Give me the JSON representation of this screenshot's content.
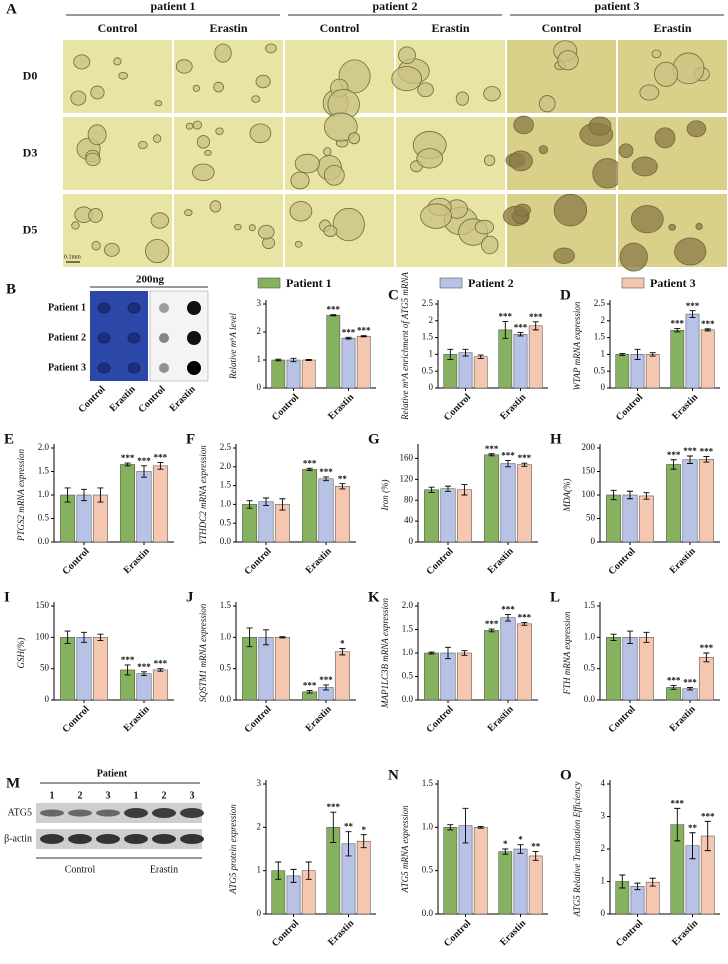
{
  "panel_a": {
    "letter": "A",
    "patients": [
      "patient 1",
      "patient 2",
      "patient 3"
    ],
    "conditions": [
      "Control",
      "Erastin"
    ],
    "days": [
      "D0",
      "D3",
      "D5"
    ],
    "scale_bar": "0.1mm"
  },
  "panel_b": {
    "letter": "B",
    "amount": "200ng",
    "rows": [
      "Patient 1",
      "Patient 2",
      "Patient 3"
    ],
    "columns": [
      "Control",
      "Erastin",
      "Control",
      "Erastin"
    ]
  },
  "panel_m": {
    "letter": "M",
    "title": "Patient",
    "lanes": [
      "1",
      "2",
      "3",
      "1",
      "2",
      "3"
    ],
    "proteins": [
      "ATG5",
      "β-actin"
    ],
    "groups": [
      "Control",
      "Erastin"
    ]
  },
  "legend": [
    {
      "name": "Patient 1",
      "color": "#86b25f"
    },
    {
      "name": "Patient 2",
      "color": "#b7c2e6"
    },
    {
      "name": "Patient 3",
      "color": "#f5c7b0"
    }
  ],
  "chart_data": [
    {
      "type": "bar",
      "ylabel": "Relative m⁶A level",
      "categories": [
        "Control",
        "Erastin"
      ],
      "ylim": [
        0,
        3
      ],
      "yticks": [
        0,
        1,
        2,
        3
      ],
      "series": [
        {
          "values": [
            1.0,
            2.6
          ],
          "errors": [
            0.03,
            0.02
          ],
          "annotations": [
            null,
            "***"
          ]
        },
        {
          "values": [
            1.0,
            1.78
          ],
          "errors": [
            0.06,
            0.03
          ],
          "annotations": [
            null,
            "***"
          ]
        },
        {
          "values": [
            1.0,
            1.85
          ],
          "errors": [
            0.02,
            0.02
          ],
          "annotations": [
            null,
            "***"
          ]
        }
      ]
    },
    {
      "type": "bar",
      "letter": "C",
      "ylabel": "Relative m⁶A enrichment of ATG5 mRNA",
      "categories": [
        "Control",
        "Erastin"
      ],
      "ylim": [
        0,
        2.5
      ],
      "yticks": [
        0,
        0.5,
        1,
        1.5,
        2,
        2.5
      ],
      "series": [
        {
          "values": [
            1.0,
            1.73
          ],
          "errors": [
            0.15,
            0.25
          ],
          "annotations": [
            null,
            "***"
          ]
        },
        {
          "values": [
            1.05,
            1.6
          ],
          "errors": [
            0.1,
            0.05
          ],
          "annotations": [
            null,
            "***"
          ]
        },
        {
          "values": [
            0.93,
            1.85
          ],
          "errors": [
            0.05,
            0.12
          ],
          "annotations": [
            null,
            "***"
          ]
        }
      ]
    },
    {
      "type": "bar",
      "letter": "D",
      "ylabel": "WTAP mRNA expression",
      "categories": [
        "Control",
        "Erastin"
      ],
      "ylim": [
        0,
        2.5
      ],
      "yticks": [
        0,
        0.5,
        1,
        1.5,
        2,
        2.5
      ],
      "series": [
        {
          "values": [
            1.0,
            1.72
          ],
          "errors": [
            0.03,
            0.05
          ],
          "annotations": [
            null,
            "***"
          ]
        },
        {
          "values": [
            1.0,
            2.2
          ],
          "errors": [
            0.15,
            0.1
          ],
          "annotations": [
            null,
            "***"
          ]
        },
        {
          "values": [
            1.0,
            1.73
          ],
          "errors": [
            0.05,
            0.03
          ],
          "annotations": [
            null,
            "***"
          ]
        }
      ]
    },
    {
      "type": "bar",
      "letter": "E",
      "ylabel": "PTGS2 mRNA expression",
      "categories": [
        "Control",
        "Erastin"
      ],
      "ylim": [
        0,
        2
      ],
      "yticks": [
        {
          "value": 0,
          "label": "0.0"
        },
        0.5,
        {
          "value": 1,
          "label": "1.0"
        },
        1.5,
        {
          "value": 2,
          "label": "2.0"
        }
      ],
      "series": [
        {
          "values": [
            1.0,
            1.65
          ],
          "errors": [
            0.15,
            0.03
          ],
          "annotations": [
            null,
            "***"
          ]
        },
        {
          "values": [
            1.0,
            1.5
          ],
          "errors": [
            0.12,
            0.12
          ],
          "annotations": [
            null,
            "***"
          ]
        },
        {
          "values": [
            1.0,
            1.62
          ],
          "errors": [
            0.15,
            0.07
          ],
          "annotations": [
            null,
            "***"
          ]
        }
      ]
    },
    {
      "type": "bar",
      "letter": "F",
      "ylabel": "YTHDC2 mRNA expression",
      "categories": [
        "Control",
        "Erastin"
      ],
      "ylim": [
        0,
        2.5
      ],
      "yticks": [
        {
          "value": 0,
          "label": "0.0"
        },
        0.5,
        {
          "value": 1,
          "label": "1.0"
        },
        1.5,
        {
          "value": 2,
          "label": "2.0"
        },
        2.5
      ],
      "series": [
        {
          "values": [
            1.0,
            1.93
          ],
          "errors": [
            0.1,
            0.03
          ],
          "annotations": [
            null,
            "***"
          ]
        },
        {
          "values": [
            1.07,
            1.68
          ],
          "errors": [
            0.1,
            0.05
          ],
          "annotations": [
            null,
            "***"
          ]
        },
        {
          "values": [
            1.0,
            1.48
          ],
          "errors": [
            0.15,
            0.07
          ],
          "annotations": [
            null,
            "**"
          ]
        }
      ]
    },
    {
      "type": "bar",
      "letter": "G",
      "ylabel": "Iron (%)",
      "categories": [
        "Control",
        "Erastin"
      ],
      "ylim": [
        0,
        180
      ],
      "yticks": [
        0,
        40,
        80,
        120,
        160
      ],
      "series": [
        {
          "values": [
            100,
            167
          ],
          "errors": [
            5,
            2
          ],
          "annotations": [
            null,
            "***"
          ]
        },
        {
          "values": [
            102,
            150
          ],
          "errors": [
            5,
            6
          ],
          "annotations": [
            null,
            "***"
          ]
        },
        {
          "values": [
            100,
            148
          ],
          "errors": [
            10,
            3
          ],
          "annotations": [
            null,
            "***"
          ]
        }
      ]
    },
    {
      "type": "bar",
      "letter": "H",
      "ylabel": "MDA(%)",
      "categories": [
        "Control",
        "Erastin"
      ],
      "ylim": [
        0,
        200
      ],
      "yticks": [
        0,
        50,
        100,
        150,
        200
      ],
      "series": [
        {
          "values": [
            100,
            165
          ],
          "errors": [
            10,
            10
          ],
          "annotations": [
            null,
            "***"
          ]
        },
        {
          "values": [
            100,
            175
          ],
          "errors": [
            8,
            8
          ],
          "annotations": [
            null,
            "***"
          ]
        },
        {
          "values": [
            98,
            176
          ],
          "errors": [
            7,
            6
          ],
          "annotations": [
            null,
            "***"
          ]
        }
      ]
    },
    {
      "type": "bar",
      "letter": "I",
      "ylabel": "GSH(%)",
      "categories": [
        "Control",
        "Erastin"
      ],
      "ylim": [
        0,
        150
      ],
      "yticks": [
        0,
        50,
        100,
        150
      ],
      "series": [
        {
          "values": [
            100,
            48
          ],
          "errors": [
            10,
            8
          ],
          "annotations": [
            null,
            "***"
          ]
        },
        {
          "values": [
            100,
            42
          ],
          "errors": [
            8,
            3
          ],
          "annotations": [
            null,
            "***"
          ]
        },
        {
          "values": [
            100,
            48
          ],
          "errors": [
            5,
            2
          ],
          "annotations": [
            null,
            "***"
          ]
        }
      ]
    },
    {
      "type": "bar",
      "letter": "J",
      "ylabel": "SQSTM1 mRNA expression",
      "categories": [
        "Control",
        "Erastin"
      ],
      "ylim": [
        0,
        1.5
      ],
      "yticks": [
        {
          "value": 0,
          "label": "0.0"
        },
        0.5,
        {
          "value": 1,
          "label": "1.0"
        },
        1.5
      ],
      "series": [
        {
          "values": [
            1.0,
            0.13
          ],
          "errors": [
            0.15,
            0.02
          ],
          "annotations": [
            null,
            "***"
          ]
        },
        {
          "values": [
            1.0,
            0.2
          ],
          "errors": [
            0.12,
            0.04
          ],
          "annotations": [
            null,
            "***"
          ]
        },
        {
          "values": [
            1.0,
            0.77
          ],
          "errors": [
            0.01,
            0.05
          ],
          "annotations": [
            null,
            "*"
          ]
        }
      ]
    },
    {
      "type": "bar",
      "letter": "K",
      "ylabel": "MAP1LC3B mRNA expression",
      "categories": [
        "Control",
        "Erastin"
      ],
      "ylim": [
        0,
        2
      ],
      "yticks": [
        {
          "value": 0,
          "label": "0.0"
        },
        0.5,
        {
          "value": 1,
          "label": "1.0"
        },
        1.5,
        {
          "value": 2,
          "label": "2.0"
        }
      ],
      "series": [
        {
          "values": [
            1.0,
            1.48
          ],
          "errors": [
            0.02,
            0.03
          ],
          "annotations": [
            null,
            "***"
          ]
        },
        {
          "values": [
            1.0,
            1.75
          ],
          "errors": [
            0.12,
            0.07
          ],
          "annotations": [
            null,
            "***"
          ]
        },
        {
          "values": [
            1.0,
            1.62
          ],
          "errors": [
            0.05,
            0.03
          ],
          "annotations": [
            null,
            "***"
          ]
        }
      ]
    },
    {
      "type": "bar",
      "letter": "L",
      "ylabel": "FTH mRNA expression",
      "categories": [
        "Control",
        "Erastin"
      ],
      "ylim": [
        0,
        1.5
      ],
      "yticks": [
        {
          "value": 0,
          "label": "0.0"
        },
        0.5,
        {
          "value": 1,
          "label": "1.0"
        },
        1.5
      ],
      "series": [
        {
          "values": [
            1.0,
            0.2
          ],
          "errors": [
            0.05,
            0.03
          ],
          "annotations": [
            null,
            "***"
          ]
        },
        {
          "values": [
            1.0,
            0.18
          ],
          "errors": [
            0.1,
            0.02
          ],
          "annotations": [
            null,
            "***"
          ]
        },
        {
          "values": [
            1.0,
            0.68
          ],
          "errors": [
            0.08,
            0.07
          ],
          "annotations": [
            null,
            "***"
          ]
        }
      ]
    },
    {
      "type": "bar",
      "ylabel": "ATG5 protein expression",
      "categories": [
        "Control",
        "Erastin"
      ],
      "ylim": [
        0,
        3
      ],
      "yticks": [
        0,
        1,
        2,
        3
      ],
      "series": [
        {
          "values": [
            1.0,
            2.0
          ],
          "errors": [
            0.2,
            0.35
          ],
          "annotations": [
            null,
            "***"
          ]
        },
        {
          "values": [
            0.88,
            1.62
          ],
          "errors": [
            0.15,
            0.28
          ],
          "annotations": [
            null,
            "**"
          ]
        },
        {
          "values": [
            1.0,
            1.68
          ],
          "errors": [
            0.2,
            0.15
          ],
          "annotations": [
            null,
            "*"
          ]
        }
      ]
    },
    {
      "type": "bar",
      "letter": "N",
      "ylabel": "ATG5 mRNA expression",
      "categories": [
        "Control",
        "Erastin"
      ],
      "ylim": [
        0,
        1.5
      ],
      "yticks": [
        {
          "value": 0,
          "label": "0.0"
        },
        0.5,
        {
          "value": 1,
          "label": "1.0"
        },
        1.5
      ],
      "series": [
        {
          "values": [
            1.0,
            0.72
          ],
          "errors": [
            0.03,
            0.03
          ],
          "annotations": [
            null,
            "*"
          ]
        },
        {
          "values": [
            1.02,
            0.75
          ],
          "errors": [
            0.2,
            0.05
          ],
          "annotations": [
            null,
            "*"
          ]
        },
        {
          "values": [
            1.0,
            0.67
          ],
          "errors": [
            0.01,
            0.05
          ],
          "annotations": [
            null,
            "**"
          ]
        }
      ]
    },
    {
      "type": "bar",
      "letter": "O",
      "ylabel": "ATG5 Relative Translation Efficiency",
      "categories": [
        "Control",
        "Erastin"
      ],
      "ylim": [
        0,
        4
      ],
      "yticks": [
        0,
        1,
        2,
        3,
        4
      ],
      "series": [
        {
          "values": [
            1.0,
            2.75
          ],
          "errors": [
            0.2,
            0.5
          ],
          "annotations": [
            null,
            "***"
          ]
        },
        {
          "values": [
            0.85,
            2.1
          ],
          "errors": [
            0.1,
            0.4
          ],
          "annotations": [
            null,
            "**"
          ]
        },
        {
          "values": [
            0.98,
            2.4
          ],
          "errors": [
            0.12,
            0.45
          ],
          "annotations": [
            null,
            "***"
          ]
        }
      ]
    }
  ]
}
